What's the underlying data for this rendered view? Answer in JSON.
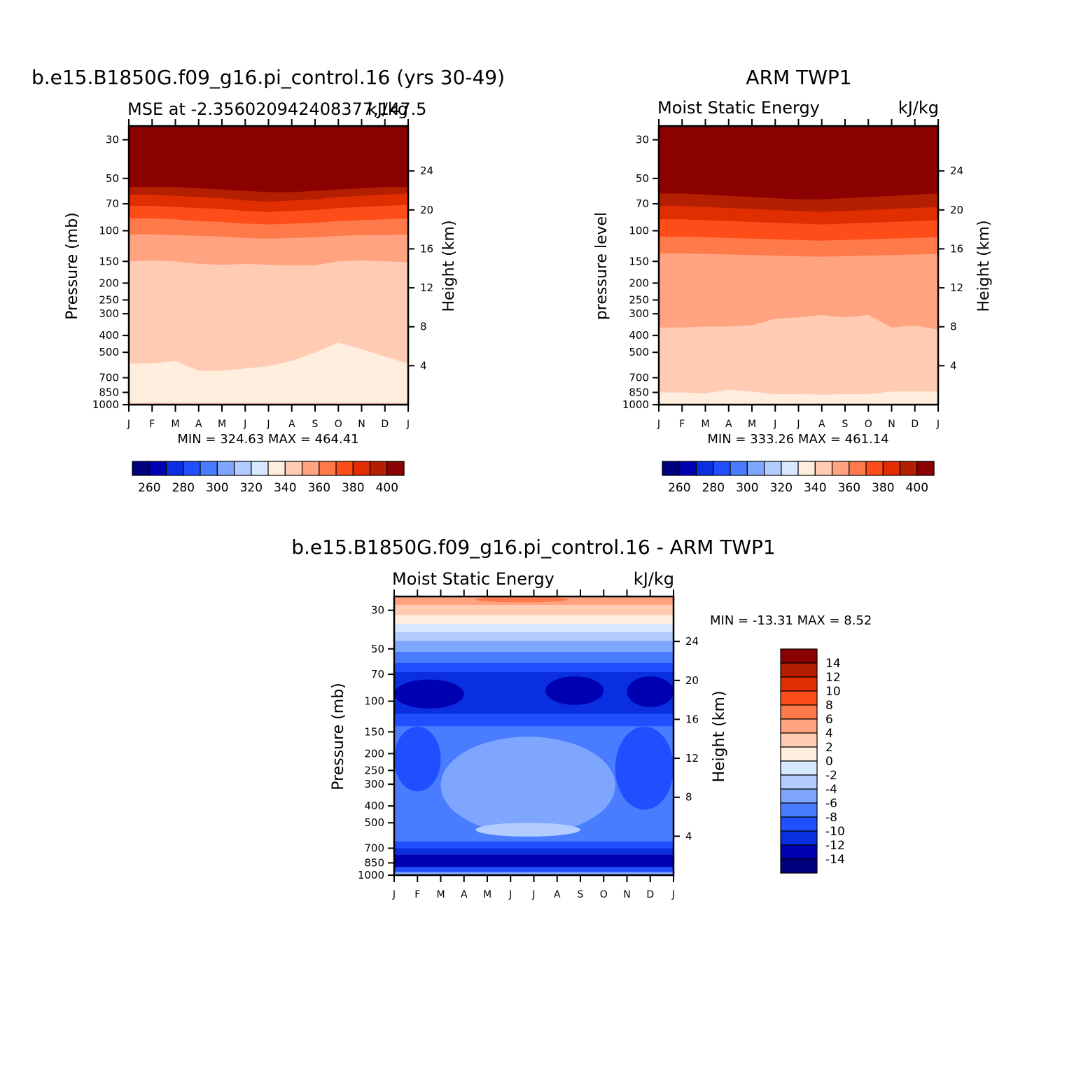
{
  "chart_data": [
    {
      "type": "heatmap",
      "title": "b.e15.B1850G.f09_g16.pi_control.16 (yrs 30-49)",
      "subtitle_left": "MSE at -2.356020942408377,147.5",
      "subtitle_right": "kJ/kg",
      "ylabel": "Pressure (mb)",
      "ylabel_right": "Height (km)",
      "x_tick_labels": [
        "J",
        "F",
        "M",
        "A",
        "M",
        "J",
        "J",
        "A",
        "S",
        "O",
        "N",
        "D",
        "J"
      ],
      "y_tick_labels": [
        "30",
        "50",
        "70",
        "100",
        "150",
        "200",
        "250",
        "300",
        "400",
        "500",
        "700",
        "850",
        "1000"
      ],
      "y_tick_values": [
        30,
        50,
        70,
        100,
        150,
        200,
        250,
        300,
        400,
        500,
        700,
        850,
        1000
      ],
      "height_tick_labels": [
        "24",
        "20",
        "16",
        "12",
        "8",
        "4"
      ],
      "height_tick_values": [
        24,
        20,
        16,
        12,
        8,
        4
      ],
      "ylim": [
        25,
        1000
      ],
      "y_scale": "log",
      "minmax_text": "MIN = 324.63 MAX = 464.41",
      "colorbar_labels": [
        "260",
        "280",
        "300",
        "320",
        "340",
        "360",
        "380",
        "400"
      ],
      "colorbar_levels": [
        250,
        260,
        270,
        280,
        290,
        300,
        310,
        320,
        330,
        340,
        350,
        360,
        370,
        380,
        390,
        400
      ],
      "colorbar_colors": [
        "#00007f",
        "#0000b3",
        "#0a2fe0",
        "#1f4fff",
        "#4a7cff",
        "#7fa6ff",
        "#b3ccff",
        "#d6e8ff",
        "#ffeedd",
        "#ffcbb3",
        "#ffa380",
        "#ff7a4a",
        "#ff4d1a",
        "#e02e00",
        "#b31f00",
        "#8b0000"
      ],
      "contour_levels": [
        340,
        350,
        360,
        370,
        380,
        390,
        400
      ],
      "contour_pressure": [
        [
          580,
          150,
          105,
          85,
          72,
          62,
          56
        ],
        [
          580,
          148,
          105,
          85,
          72,
          62,
          56
        ],
        [
          560,
          150,
          106,
          86,
          73,
          63,
          56
        ],
        [
          640,
          155,
          107,
          88,
          74,
          64,
          57
        ],
        [
          640,
          157,
          108,
          89,
          75,
          65,
          58
        ],
        [
          620,
          155,
          110,
          91,
          77,
          67,
          59
        ],
        [
          600,
          157,
          111,
          92,
          78,
          68,
          60
        ],
        [
          560,
          158,
          110,
          91,
          77,
          67,
          60
        ],
        [
          500,
          158,
          109,
          90,
          76,
          66,
          59
        ],
        [
          440,
          150,
          107,
          88,
          74,
          64,
          58
        ],
        [
          480,
          148,
          106,
          87,
          73,
          63,
          57
        ],
        [
          530,
          150,
          106,
          86,
          72,
          62,
          56
        ],
        [
          580,
          152,
          105,
          85,
          71,
          61,
          56
        ]
      ],
      "boundary_layer": [
        {
          "level": 330,
          "pressure": [
            930,
            930,
            930,
            928,
            925,
            925,
            920,
            922,
            925,
            928,
            930,
            930,
            930
          ]
        },
        {
          "level": 340,
          "pressure": [
            975,
            975,
            975,
            975,
            975,
            975,
            975,
            975,
            975,
            975,
            975,
            975,
            975
          ]
        }
      ]
    },
    {
      "type": "heatmap",
      "title": "ARM TWP1",
      "subtitle_left": "Moist Static Energy",
      "subtitle_right": "kJ/kg",
      "ylabel": "pressure level",
      "ylabel_right": "Height (km)",
      "x_tick_labels": [
        "J",
        "F",
        "M",
        "A",
        "M",
        "J",
        "J",
        "A",
        "S",
        "O",
        "N",
        "D",
        "J"
      ],
      "y_tick_labels": [
        "30",
        "50",
        "70",
        "100",
        "150",
        "200",
        "250",
        "300",
        "400",
        "500",
        "700",
        "850",
        "1000"
      ],
      "y_tick_values": [
        30,
        50,
        70,
        100,
        150,
        200,
        250,
        300,
        400,
        500,
        700,
        850,
        1000
      ],
      "height_tick_labels": [
        "24",
        "20",
        "16",
        "12",
        "8",
        "4"
      ],
      "height_tick_values": [
        24,
        20,
        16,
        12,
        8,
        4
      ],
      "ylim": [
        25,
        1000
      ],
      "y_scale": "log",
      "minmax_text": "MIN = 333.26 MAX = 461.14",
      "colorbar_labels": [
        "260",
        "280",
        "300",
        "320",
        "340",
        "360",
        "380",
        "400"
      ],
      "colorbar_levels": [
        250,
        260,
        270,
        280,
        290,
        300,
        310,
        320,
        330,
        340,
        350,
        360,
        370,
        380,
        390,
        400
      ],
      "colorbar_colors": [
        "#00007f",
        "#0000b3",
        "#0a2fe0",
        "#1f4fff",
        "#4a7cff",
        "#7fa6ff",
        "#b3ccff",
        "#d6e8ff",
        "#ffeedd",
        "#ffcbb3",
        "#ffa380",
        "#ff7a4a",
        "#ff4d1a",
        "#e02e00",
        "#b31f00",
        "#8b0000"
      ],
      "contour_levels": [
        340,
        350,
        360,
        370,
        380,
        390,
        400
      ],
      "contour_pressure": [
        [
          850,
          360,
          135,
          108,
          86,
          72,
          61
        ],
        [
          850,
          360,
          135,
          108,
          86,
          72,
          61
        ],
        [
          860,
          355,
          136,
          109,
          87,
          73,
          62
        ],
        [
          820,
          355,
          137,
          110,
          88,
          74,
          63
        ],
        [
          840,
          350,
          138,
          111,
          89,
          75,
          64
        ],
        [
          870,
          320,
          139,
          112,
          90,
          76,
          65
        ],
        [
          870,
          315,
          140,
          113,
          91,
          77,
          66
        ],
        [
          875,
          305,
          141,
          114,
          92,
          78,
          66
        ],
        [
          870,
          315,
          140,
          113,
          91,
          77,
          65
        ],
        [
          870,
          305,
          139,
          112,
          90,
          76,
          64
        ],
        [
          840,
          360,
          138,
          111,
          89,
          75,
          63
        ],
        [
          840,
          350,
          137,
          110,
          88,
          74,
          62
        ],
        [
          840,
          370,
          136,
          109,
          87,
          73,
          61
        ]
      ],
      "boundary_layer": []
    },
    {
      "type": "heatmap",
      "title": "b.e15.B1850G.f09_g16.pi_control.16 - ARM TWP1",
      "subtitle_left": "Moist Static Energy",
      "subtitle_right": "kJ/kg",
      "ylabel": "Pressure (mb)",
      "ylabel_right": "Height (km)",
      "x_tick_labels": [
        "J",
        "F",
        "M",
        "A",
        "M",
        "J",
        "J",
        "A",
        "S",
        "O",
        "N",
        "D",
        "J"
      ],
      "y_tick_labels": [
        "30",
        "50",
        "70",
        "100",
        "150",
        "200",
        "250",
        "300",
        "400",
        "500",
        "700",
        "850",
        "1000"
      ],
      "y_tick_values": [
        30,
        50,
        70,
        100,
        150,
        200,
        250,
        300,
        400,
        500,
        700,
        850,
        1000
      ],
      "height_tick_labels": [
        "24",
        "20",
        "16",
        "12",
        "8",
        "4"
      ],
      "height_tick_values": [
        24,
        20,
        16,
        12,
        8,
        4
      ],
      "ylim": [
        25,
        1000
      ],
      "y_scale": "log",
      "minmax_text": "MIN = -13.31 MAX = 8.52",
      "colorbar_labels": [
        "14",
        "12",
        "10",
        "8",
        "6",
        "4",
        "2",
        "0",
        "-2",
        "-4",
        "-6",
        "-8",
        "-10",
        "-12",
        "-14"
      ],
      "colorbar_levels": [
        -16,
        -14,
        -12,
        -10,
        -8,
        -6,
        -4,
        -2,
        0,
        2,
        4,
        6,
        8,
        10,
        12,
        14
      ],
      "colorbar_colors": [
        "#00007f",
        "#0000b3",
        "#0a2fe0",
        "#1f4fff",
        "#4a7cff",
        "#7fa6ff",
        "#b3ccff",
        "#d6e8ff",
        "#ffeedd",
        "#ffcbb3",
        "#ffa380",
        "#ff7a4a",
        "#ff4d1a",
        "#e02e00",
        "#b31f00",
        "#8b0000"
      ],
      "diff_bands": [
        {
          "p_top": 25,
          "p_bot": 28,
          "value": 5
        },
        {
          "p_top": 28,
          "p_bot": 32,
          "value": 3
        },
        {
          "p_top": 32,
          "p_bot": 36,
          "value": 1
        },
        {
          "p_top": 36,
          "p_bot": 40,
          "value": -1
        },
        {
          "p_top": 40,
          "p_bot": 45,
          "value": -3
        },
        {
          "p_top": 45,
          "p_bot": 52,
          "value": -5
        },
        {
          "p_top": 52,
          "p_bot": 60,
          "value": -7
        },
        {
          "p_top": 60,
          "p_bot": 68,
          "value": -9
        },
        {
          "p_top": 68,
          "p_bot": 118,
          "value": -11
        },
        {
          "p_top": 118,
          "p_bot": 140,
          "value": -9
        },
        {
          "p_top": 140,
          "p_bot": 640,
          "value": -7
        },
        {
          "p_top": 640,
          "p_bot": 700,
          "value": -9
        },
        {
          "p_top": 700,
          "p_bot": 760,
          "value": -11
        },
        {
          "p_top": 760,
          "p_bot": 900,
          "value": -13
        },
        {
          "p_top": 900,
          "p_bot": 960,
          "value": -9
        },
        {
          "p_top": 960,
          "p_bot": 1000,
          "value": -5
        }
      ],
      "diff_patches": [
        {
          "value": -5,
          "month_from": 2,
          "month_to": 9.5,
          "p_top": 160,
          "p_bot": 580
        },
        {
          "value": -3,
          "month_from": 3.5,
          "month_to": 8,
          "p_top": 500,
          "p_bot": 600
        },
        {
          "value": -9,
          "month_from": 0,
          "month_to": 2,
          "p_top": 140,
          "p_bot": 330
        },
        {
          "value": -9,
          "month_from": 9.5,
          "month_to": 12,
          "p_top": 140,
          "p_bot": 420
        },
        {
          "value": -13,
          "month_from": 0,
          "month_to": 3,
          "p_top": 75,
          "p_bot": 110
        },
        {
          "value": -13,
          "month_from": 6.5,
          "month_to": 9,
          "p_top": 72,
          "p_bot": 105
        },
        {
          "value": -13,
          "month_from": 10,
          "month_to": 12,
          "p_top": 72,
          "p_bot": 108
        },
        {
          "value": 7,
          "month_from": 3.5,
          "month_to": 7.5,
          "p_top": 25,
          "p_bot": 27
        }
      ]
    }
  ]
}
